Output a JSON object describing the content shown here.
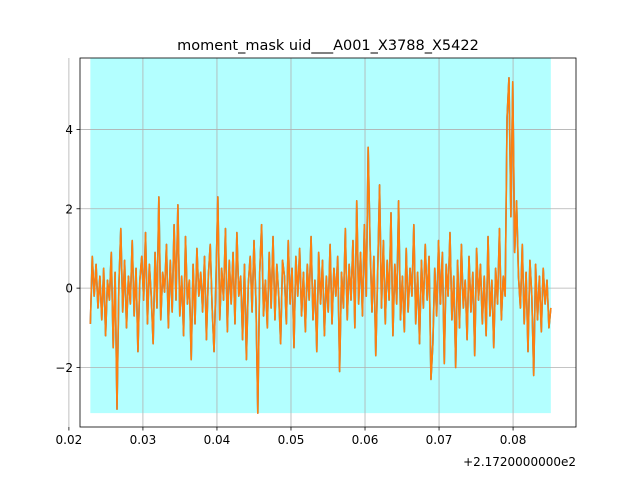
{
  "chart_data": {
    "type": "line",
    "title": "moment_mask uid___A001_X3788_X5422",
    "xlabel": "",
    "ylabel": "",
    "x_offset_label": "+2.1720000000e2",
    "xlim": [
      0.0215,
      0.0885
    ],
    "ylim": [
      -3.5,
      5.8
    ],
    "x_ticks": [
      0.02,
      0.03,
      0.04,
      0.05,
      0.06,
      0.07,
      0.08
    ],
    "x_tick_labels": [
      "0.02",
      "0.03",
      "0.04",
      "0.05",
      "0.06",
      "0.07",
      "0.08"
    ],
    "y_ticks": [
      -2,
      0,
      2,
      4
    ],
    "y_tick_labels": [
      "−2",
      "0",
      "2",
      "4"
    ],
    "grid": true,
    "mask_region": {
      "x": [
        0.0229,
        0.0851
      ],
      "y": [
        -3.15,
        5.8
      ],
      "color": "#b3ffff"
    },
    "series": [
      {
        "color": "#1f77b4",
        "x_start": 0.0229,
        "x_end": 0.0851,
        "values": [
          -0.9,
          0.8,
          -0.2,
          0.6,
          -0.5,
          0.3,
          -0.8,
          0.5,
          -1.2,
          0.2,
          -0.3,
          0.9,
          -1.5,
          0.4,
          -3.05,
          0.1,
          1.5,
          -0.6,
          0.7,
          -1.0,
          0.3,
          -0.4,
          1.2,
          -0.7,
          0.5,
          -1.6,
          0.2,
          0.8,
          -0.3,
          1.4,
          -0.9,
          0.6,
          -0.2,
          -1.4,
          0.9,
          -0.5,
          2.3,
          -0.8,
          0.4,
          -0.1,
          1.1,
          -1.0,
          0.7,
          -0.6,
          1.6,
          -0.3,
          2.1,
          -0.7,
          0.3,
          -1.2,
          1.3,
          -0.4,
          0.2,
          -1.8,
          0.6,
          -0.9,
          1.0,
          -0.2,
          0.4,
          -0.6,
          0.8,
          -1.3,
          0.3,
          1.1,
          -0.5,
          -1.6,
          0.2,
          2.3,
          -0.8,
          0.5,
          -0.3,
          1.5,
          -1.1,
          0.7,
          -0.4,
          0.9,
          -0.9,
          1.4,
          -0.2,
          0.3,
          -1.3,
          0.6,
          -1.8,
          0.1,
          0.8,
          -0.6,
          1.2,
          -0.3,
          -3.15,
          0.4,
          1.6,
          -0.7,
          0.2,
          -1.0,
          0.9,
          -0.5,
          1.3,
          -0.8,
          0.6,
          -0.2,
          -1.4,
          0.7,
          0.3,
          -0.9,
          1.2,
          -0.4,
          0.5,
          -1.5,
          0.8,
          -0.2,
          1.0,
          -0.7,
          0.4,
          -1.1,
          0.6,
          -0.3,
          1.3,
          -0.8,
          0.2,
          -1.6,
          0.9,
          -0.4,
          0.7,
          -1.2,
          0.3,
          -0.6,
          1.1,
          -0.9,
          0.5,
          -0.2,
          0.8,
          -2.1,
          0.4,
          -0.5,
          1.5,
          -0.8,
          0.6,
          -0.3,
          1.2,
          -1.0,
          2.2,
          -0.4,
          0.9,
          -0.7,
          1.6,
          -0.2,
          3.55,
          1.1,
          -0.6,
          0.8,
          -1.7,
          0.4,
          2.6,
          -0.5,
          1.2,
          -0.9,
          0.7,
          -0.3,
          1.9,
          -1.2,
          0.6,
          -0.4,
          2.2,
          -0.8,
          0.3,
          -1.1,
          1.0,
          -0.6,
          0.5,
          -0.2,
          1.6,
          -0.9,
          0.4,
          -1.4,
          0.7,
          -0.5,
          1.1,
          -0.3,
          0.8,
          -2.3,
          -1.4,
          0.5,
          -0.7,
          1.2,
          -0.4,
          0.9,
          -1.9,
          0.6,
          -0.2,
          1.4,
          -0.8,
          0.3,
          -2.0,
          0.7,
          -1.0,
          1.1,
          -0.5,
          0.2,
          -1.3,
          0.8,
          -0.6,
          0.4,
          -1.7,
          1.0,
          -0.3,
          0.6,
          -0.9,
          0.3,
          -1.2,
          1.3,
          -0.7,
          0.2,
          -1.5,
          0.5,
          -0.4,
          1.5,
          -0.8,
          0.3,
          -0.2,
          4.3,
          5.3,
          1.8,
          5.2,
          0.9,
          2.2,
          0.3,
          -0.5,
          1.1,
          -0.9,
          0.4,
          -1.6,
          0.7,
          -0.2,
          -2.2,
          0.6,
          -0.8,
          0.3,
          -1.1,
          0.5,
          -0.4,
          0.2,
          -1.0,
          -0.5
        ]
      },
      {
        "color": "#ff7f0e",
        "x_start": 0.0229,
        "x_end": 0.0851,
        "values": [
          -0.9,
          0.8,
          -0.2,
          0.6,
          -0.5,
          0.3,
          -0.8,
          0.5,
          -1.2,
          0.2,
          -0.3,
          0.9,
          -1.5,
          0.4,
          -3.05,
          0.1,
          1.5,
          -0.6,
          0.7,
          -1.0,
          0.3,
          -0.4,
          1.2,
          -0.7,
          0.5,
          -1.6,
          0.2,
          0.8,
          -0.3,
          1.4,
          -0.9,
          0.6,
          -0.2,
          -1.4,
          0.9,
          -0.5,
          2.3,
          -0.8,
          0.4,
          -0.1,
          1.1,
          -1.0,
          0.7,
          -0.6,
          1.6,
          -0.3,
          2.1,
          -0.7,
          0.3,
          -1.2,
          1.3,
          -0.4,
          0.2,
          -1.8,
          0.6,
          -0.9,
          1.0,
          -0.2,
          0.4,
          -0.6,
          0.8,
          -1.3,
          0.3,
          1.1,
          -0.5,
          -1.6,
          0.2,
          2.3,
          -0.8,
          0.5,
          -0.3,
          1.5,
          -1.1,
          0.7,
          -0.4,
          0.9,
          -0.9,
          1.4,
          -0.2,
          0.3,
          -1.3,
          0.6,
          -1.8,
          0.1,
          0.8,
          -0.6,
          1.2,
          -0.3,
          -3.15,
          0.4,
          1.6,
          -0.7,
          0.2,
          -1.0,
          0.9,
          -0.5,
          1.3,
          -0.8,
          0.6,
          -0.2,
          -1.4,
          0.7,
          0.3,
          -0.9,
          1.2,
          -0.4,
          0.5,
          -1.5,
          0.8,
          -0.2,
          1.0,
          -0.7,
          0.4,
          -1.1,
          0.6,
          -0.3,
          1.3,
          -0.8,
          0.2,
          -1.6,
          0.9,
          -0.4,
          0.7,
          -1.2,
          0.3,
          -0.6,
          1.1,
          -0.9,
          0.5,
          -0.2,
          0.8,
          -2.1,
          0.4,
          -0.5,
          1.5,
          -0.8,
          0.6,
          -0.3,
          1.2,
          -1.0,
          2.2,
          -0.4,
          0.9,
          -0.7,
          1.6,
          -0.2,
          3.55,
          1.1,
          -0.6,
          0.8,
          -1.7,
          0.4,
          2.6,
          -0.5,
          1.2,
          -0.9,
          0.7,
          -0.3,
          1.9,
          -1.2,
          0.6,
          -0.4,
          2.2,
          -0.8,
          0.3,
          -1.1,
          1.0,
          -0.6,
          0.5,
          -0.2,
          1.6,
          -0.9,
          0.4,
          -1.4,
          0.7,
          -0.5,
          1.1,
          -0.3,
          0.8,
          -2.3,
          -1.4,
          0.5,
          -0.7,
          1.2,
          -0.4,
          0.9,
          -1.9,
          0.6,
          -0.2,
          1.4,
          -0.8,
          0.3,
          -2.0,
          0.7,
          -1.0,
          1.1,
          -0.5,
          0.2,
          -1.3,
          0.8,
          -0.6,
          0.4,
          -1.7,
          1.0,
          -0.3,
          0.6,
          -0.9,
          0.3,
          -1.2,
          1.3,
          -0.7,
          0.2,
          -1.5,
          0.5,
          -0.4,
          1.5,
          -0.8,
          0.3,
          -0.2,
          4.3,
          5.3,
          1.8,
          5.2,
          0.9,
          2.2,
          0.3,
          -0.5,
          1.1,
          -0.9,
          0.4,
          -1.6,
          0.7,
          -0.2,
          -2.2,
          0.6,
          -0.8,
          0.3,
          -1.1,
          0.5,
          -0.4,
          0.2,
          -1.0,
          -0.5
        ]
      }
    ]
  }
}
